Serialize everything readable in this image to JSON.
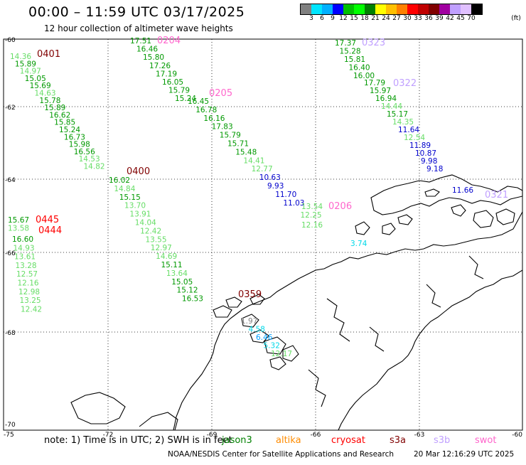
{
  "header": {
    "title": "00:00 – 11:59 UTC 03/17/2025",
    "subtitle": "12 hour collection of altimeter wave heights"
  },
  "colorbar": {
    "unit": "(ft)",
    "colors": [
      "#808080",
      "#00e5ff",
      "#00b0ff",
      "#0000ff",
      "#00c000",
      "#00ff00",
      "#008000",
      "#ffff00",
      "#ffc000",
      "#ff8000",
      "#ff0000",
      "#c00000",
      "#800000",
      "#a000a0",
      "#c0a0ff",
      "#e0c0ff",
      "#000000"
    ],
    "labels": [
      "3",
      "6",
      "9",
      "12",
      "15",
      "18",
      "21",
      "24",
      "27",
      "30",
      "33",
      "36",
      "39",
      "42",
      "45",
      "70"
    ]
  },
  "map": {
    "lat_labels": [
      "-60",
      "-62",
      "-64",
      "-66",
      "-68",
      "-70"
    ],
    "lon_labels": [
      "-75",
      "-72",
      "-69",
      "-66",
      "-63",
      "-60"
    ],
    "grid_color": "#000000"
  },
  "passes": [
    {
      "id": "0401",
      "color": "#800000",
      "values": [
        {
          "v": "14.36",
          "c": "#66dd66"
        },
        {
          "v": "15.89",
          "c": "#009900"
        },
        {
          "v": "14.97",
          "c": "#66dd66"
        },
        {
          "v": "15.05",
          "c": "#009900"
        },
        {
          "v": "15.69",
          "c": "#009900"
        },
        {
          "v": "14.63",
          "c": "#66dd66"
        },
        {
          "v": "15.78",
          "c": "#009900"
        },
        {
          "v": "15.89",
          "c": "#009900"
        },
        {
          "v": "16.62",
          "c": "#009900"
        },
        {
          "v": "15.85",
          "c": "#009900"
        },
        {
          "v": "15.24",
          "c": "#009900"
        },
        {
          "v": "16.73",
          "c": "#009900"
        },
        {
          "v": "15.98",
          "c": "#009900"
        },
        {
          "v": "16.56",
          "c": "#009900"
        },
        {
          "v": "14.53",
          "c": "#66dd66"
        },
        {
          "v": "14.82",
          "c": "#66dd66"
        }
      ]
    },
    {
      "id": "0400",
      "color": "#800000",
      "values": [
        {
          "v": "16.02",
          "c": "#009900"
        },
        {
          "v": "14.84",
          "c": "#66dd66"
        },
        {
          "v": "15.15",
          "c": "#009900"
        },
        {
          "v": "13.70",
          "c": "#66dd66"
        },
        {
          "v": "13.91",
          "c": "#66dd66"
        },
        {
          "v": "14.04",
          "c": "#66dd66"
        },
        {
          "v": "12.42",
          "c": "#66dd66"
        },
        {
          "v": "13.55",
          "c": "#66dd66"
        },
        {
          "v": "12.97",
          "c": "#66dd66"
        },
        {
          "v": "14.69",
          "c": "#66dd66"
        },
        {
          "v": "15.11",
          "c": "#009900"
        },
        {
          "v": "13.64",
          "c": "#66dd66"
        },
        {
          "v": "15.05",
          "c": "#009900"
        },
        {
          "v": "15.12",
          "c": "#009900"
        },
        {
          "v": "16.53",
          "c": "#009900"
        }
      ]
    },
    {
      "id": "0359",
      "color": "#800000",
      "values": [
        {
          "v": "1.97",
          "c": "#808080"
        },
        {
          "v": "4.58",
          "c": "#00d8e8"
        },
        {
          "v": "6.46",
          "c": "#00a0ff"
        },
        {
          "v": "5.32",
          "c": "#00d8e8"
        },
        {
          "v": "12.17",
          "c": "#66dd66"
        }
      ]
    },
    {
      "id": "0204",
      "color": "#ff66cc",
      "values": [
        {
          "v": "17.51",
          "c": "#009900"
        },
        {
          "v": "16.46",
          "c": "#009900"
        },
        {
          "v": "15.80",
          "c": "#009900"
        },
        {
          "v": "17.26",
          "c": "#009900"
        },
        {
          "v": "17.19",
          "c": "#009900"
        },
        {
          "v": "16.05",
          "c": "#009900"
        },
        {
          "v": "15.79",
          "c": "#009900"
        },
        {
          "v": "15.24",
          "c": "#009900"
        }
      ]
    },
    {
      "id": "0205",
      "color": "#ff66cc",
      "values": [
        {
          "v": "16.45",
          "c": "#009900"
        },
        {
          "v": "16.78",
          "c": "#009900"
        },
        {
          "v": "16.16",
          "c": "#009900"
        },
        {
          "v": "17.83",
          "c": "#009900"
        },
        {
          "v": "15.79",
          "c": "#009900"
        },
        {
          "v": "15.71",
          "c": "#009900"
        },
        {
          "v": "15.48",
          "c": "#009900"
        },
        {
          "v": "14.41",
          "c": "#66dd66"
        },
        {
          "v": "12.77",
          "c": "#66dd66"
        },
        {
          "v": "10.63",
          "c": "#0000cc"
        },
        {
          "v": "9.93",
          "c": "#0000cc"
        },
        {
          "v": "11.70",
          "c": "#0000cc"
        },
        {
          "v": "11.03",
          "c": "#0000cc"
        }
      ]
    },
    {
      "id": "0206",
      "color": "#ff66cc",
      "values": [
        {
          "v": "13.54",
          "c": "#66dd66"
        },
        {
          "v": "12.25",
          "c": "#66dd66"
        },
        {
          "v": "12.16",
          "c": "#66dd66"
        },
        {
          "v": "3.74",
          "c": "#00d8e8"
        }
      ]
    },
    {
      "id": "0323",
      "color": "#c0a0ff",
      "values": [
        {
          "v": "17.37",
          "c": "#009900"
        },
        {
          "v": "15.28",
          "c": "#009900"
        },
        {
          "v": "15.81",
          "c": "#009900"
        },
        {
          "v": "16.40",
          "c": "#009900"
        },
        {
          "v": "16.00",
          "c": "#009900"
        }
      ]
    },
    {
      "id": "0322",
      "color": "#c0a0ff",
      "values": [
        {
          "v": "17.79",
          "c": "#009900"
        },
        {
          "v": "15.97",
          "c": "#009900"
        },
        {
          "v": "16.94",
          "c": "#009900"
        },
        {
          "v": "14.44",
          "c": "#66dd66"
        },
        {
          "v": "15.17",
          "c": "#009900"
        },
        {
          "v": "14.35",
          "c": "#66dd66"
        },
        {
          "v": "11.64",
          "c": "#0000cc"
        },
        {
          "v": "12.54",
          "c": "#66dd66"
        },
        {
          "v": "11.89",
          "c": "#0000cc"
        },
        {
          "v": "10.87",
          "c": "#0000cc"
        },
        {
          "v": "9.98",
          "c": "#0000cc"
        },
        {
          "v": "9.18",
          "c": "#0000cc"
        }
      ]
    },
    {
      "id": "0321",
      "color": "#c0a0ff",
      "values": [
        {
          "v": "11.66",
          "c": "#0000cc"
        }
      ]
    },
    {
      "id": "0445",
      "color": "#ff0000",
      "values": [
        {
          "v": "15.67",
          "c": "#009900"
        },
        {
          "v": "13.58",
          "c": "#66dd66"
        }
      ]
    },
    {
      "id": "0444",
      "color": "#ff0000",
      "values": [
        {
          "v": "16.60",
          "c": "#009900"
        },
        {
          "v": "14.93",
          "c": "#66dd66"
        },
        {
          "v": "13.61",
          "c": "#66dd66"
        },
        {
          "v": "13.28",
          "c": "#66dd66"
        },
        {
          "v": "12.57",
          "c": "#66dd66"
        },
        {
          "v": "12.16",
          "c": "#66dd66"
        },
        {
          "v": "12.98",
          "c": "#66dd66"
        },
        {
          "v": "13.25",
          "c": "#66dd66"
        },
        {
          "v": "12.42",
          "c": "#66dd66"
        }
      ]
    }
  ],
  "footer": {
    "note_prefix": "note: 1) Time is in UTC; 2) SWH is in feet",
    "satellites": [
      {
        "name": "jason3",
        "color": "#008000"
      },
      {
        "name": "altika",
        "color": "#ff8c00"
      },
      {
        "name": "cryosat",
        "color": "#ff0000"
      },
      {
        "name": "s3a",
        "color": "#800000"
      },
      {
        "name": "s3b",
        "color": "#c0a0ff"
      },
      {
        "name": "swot",
        "color": "#ff66cc"
      }
    ],
    "credit": "NOAA/NESDIS Center for Satellite Applications and Research",
    "timestamp": "20 Mar 12:16:29 UTC 2025"
  }
}
